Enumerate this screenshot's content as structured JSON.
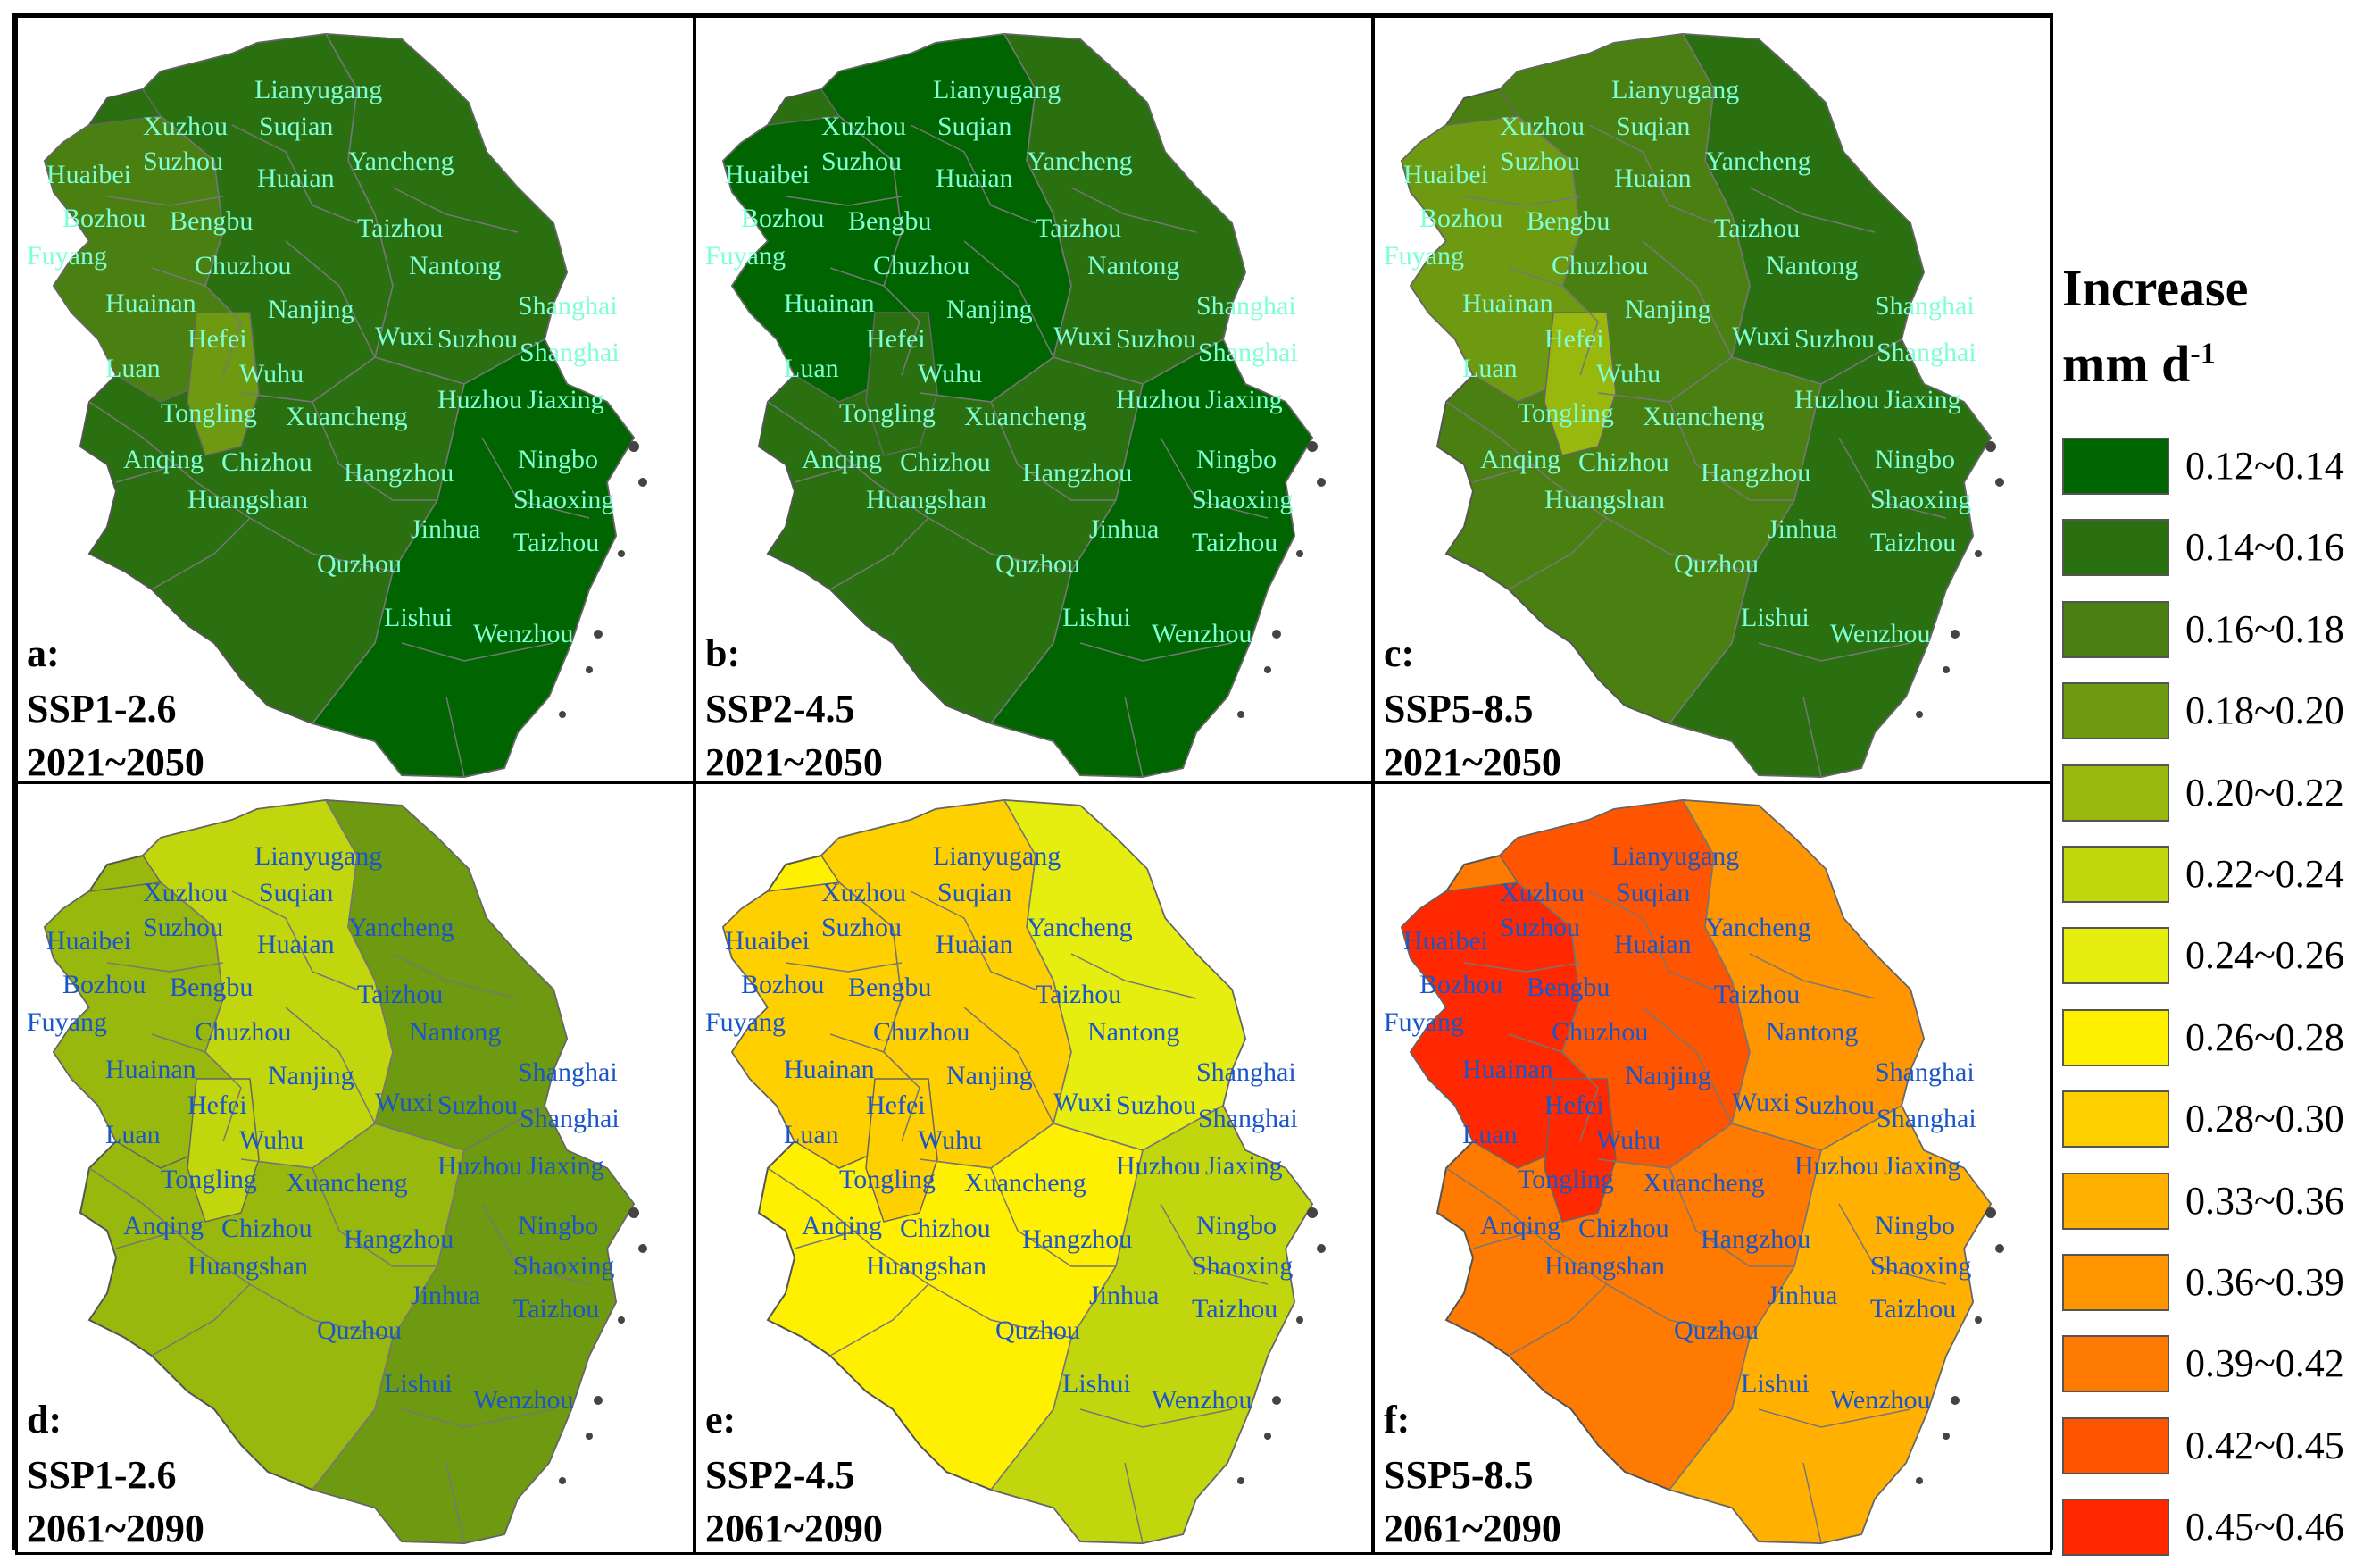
{
  "legend": {
    "title": "Increase",
    "unit_base": "mm d",
    "unit_sup": "-1",
    "items": [
      {
        "label": "0.12~0.14",
        "color": "#006400"
      },
      {
        "label": "0.14~0.16",
        "color": "#2b7010"
      },
      {
        "label": "0.16~0.18",
        "color": "#4a8012"
      },
      {
        "label": "0.18~0.20",
        "color": "#6d9a10"
      },
      {
        "label": "0.20~0.22",
        "color": "#98b80e"
      },
      {
        "label": "0.22~0.24",
        "color": "#c2d60e"
      },
      {
        "label": "0.24~0.26",
        "color": "#e6ee10"
      },
      {
        "label": "0.26~0.28",
        "color": "#fff000"
      },
      {
        "label": "0.28~0.30",
        "color": "#ffd000"
      },
      {
        "label": "0.33~0.36",
        "color": "#ffb000"
      },
      {
        "label": "0.36~0.39",
        "color": "#ff9500"
      },
      {
        "label": "0.39~0.42",
        "color": "#ff7a00"
      },
      {
        "label": "0.42~0.45",
        "color": "#ff5400"
      },
      {
        "label": "0.45~0.46",
        "color": "#ff2800"
      }
    ]
  },
  "panels": [
    {
      "letter": "a:",
      "scenario": "SSP1-2.6",
      "period": "2021~2050",
      "base_color": "#2b7010",
      "label_color": "#7fffd4",
      "regions": {
        "west": "#4a8012",
        "center": "#2b7010",
        "east": "#2b7010",
        "south": "#006400",
        "hefei": "#6d9a10"
      }
    },
    {
      "letter": "b:",
      "scenario": "SSP2-4.5",
      "period": "2021~2050",
      "base_color": "#2b7010",
      "label_color": "#7fffd4",
      "regions": {
        "west": "#006400",
        "center": "#006400",
        "east": "#2b7010",
        "south": "#006400",
        "hefei": "#2b7010"
      }
    },
    {
      "letter": "c:",
      "scenario": "SSP5-8.5",
      "period": "2021~2050",
      "base_color": "#4a8012",
      "label_color": "#7fffd4",
      "regions": {
        "west": "#6d9a10",
        "center": "#4a8012",
        "east": "#2b7010",
        "south": "#2b7010",
        "hefei": "#98b80e"
      }
    },
    {
      "letter": "d:",
      "scenario": "SSP1-2.6",
      "period": "2061~2090",
      "base_color": "#98b80e",
      "label_color": "#1a56c8",
      "regions": {
        "west": "#98b80e",
        "center": "#c2d60e",
        "east": "#6d9a10",
        "south": "#6d9a10",
        "hefei": "#c2d60e"
      }
    },
    {
      "letter": "e:",
      "scenario": "SSP2-4.5",
      "period": "2061~2090",
      "base_color": "#fff000",
      "label_color": "#1a56c8",
      "regions": {
        "west": "#ffd000",
        "center": "#ffd000",
        "east": "#e6ee10",
        "south": "#c2d60e",
        "hefei": "#ffd000"
      }
    },
    {
      "letter": "f:",
      "scenario": "SSP5-8.5",
      "period": "2061~2090",
      "base_color": "#ff7a00",
      "label_color": "#1a56c8",
      "regions": {
        "west": "#ff2800",
        "center": "#ff5400",
        "east": "#ff9500",
        "south": "#ffb000",
        "hefei": "#ff2800"
      }
    }
  ],
  "cities": [
    "Lianyugang",
    "Xuzhou",
    "Suqian",
    "Huaibei",
    "Suzhou",
    "Huaian",
    "Yancheng",
    "Bozhou",
    "Bengbu",
    "Taizhou",
    "Fuyang",
    "Chuzhou",
    "Nantong",
    "Huainan",
    "Nanjing",
    "Shanghai",
    "Hefei",
    "Wuxi",
    "Suzhou",
    "Shanghai",
    "Luan",
    "Wuhu",
    "Tongling",
    "Xuancheng",
    "Huzhou",
    "Jiaxing",
    "Anqing",
    "Chizhou",
    "Ningbo",
    "Huangshan",
    "Hangzhou",
    "Shaoxing",
    "Jinhua",
    "Taizhou",
    "Quzhou",
    "Lishui",
    "Wenzhou"
  ]
}
